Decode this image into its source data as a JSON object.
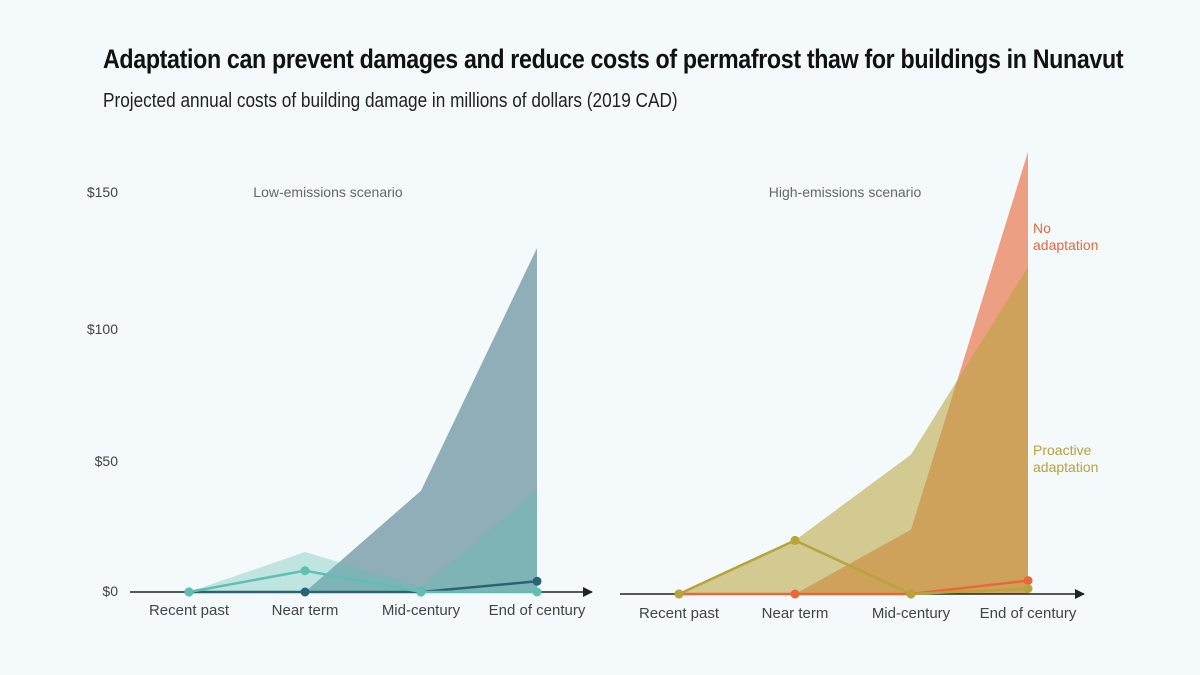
{
  "header": {
    "title": "Adaptation can prevent damages and reduce costs of permafrost thaw for buildings in Nunavut",
    "subtitle": "Projected annual costs of building damage in millions of dollars (2019 CAD)"
  },
  "chart_data": [
    {
      "type": "area",
      "title": "Low-emissions scenario",
      "categories": [
        "Recent past",
        "Near term",
        "Mid-century",
        "End of century"
      ],
      "yticks": [
        "$0",
        "$50",
        "$100",
        "$150"
      ],
      "ylim": [
        0,
        150
      ],
      "series": [
        {
          "color": "#2a6376",
          "range_low": [
            0,
            0,
            0,
            0
          ],
          "range_high": [
            0,
            0,
            38,
            129
          ],
          "values": [
            0,
            0,
            0,
            4
          ]
        },
        {
          "color": "#5fbfb2",
          "range_low": [
            0,
            0,
            0,
            0
          ],
          "range_high": [
            0,
            15,
            2,
            38
          ],
          "values": [
            0,
            8,
            0,
            0
          ]
        }
      ]
    },
    {
      "type": "area",
      "title": "High-emissions scenario",
      "categories": [
        "Recent past",
        "Near term",
        "Mid-century",
        "End of century"
      ],
      "ylim": [
        0,
        150
      ],
      "series": [
        {
          "name": "No adaptation",
          "color": "#e8683a",
          "range_low": [
            0,
            0,
            0,
            0
          ],
          "range_high": [
            0,
            0,
            24,
            165
          ],
          "values": [
            0,
            0,
            0,
            5
          ]
        },
        {
          "name": "Proactive adaptation",
          "color": "#b7a43b",
          "range_low": [
            0,
            0,
            0,
            0
          ],
          "range_high": [
            0,
            20,
            52,
            122
          ],
          "values": [
            0,
            20,
            0,
            2
          ]
        }
      ]
    }
  ]
}
